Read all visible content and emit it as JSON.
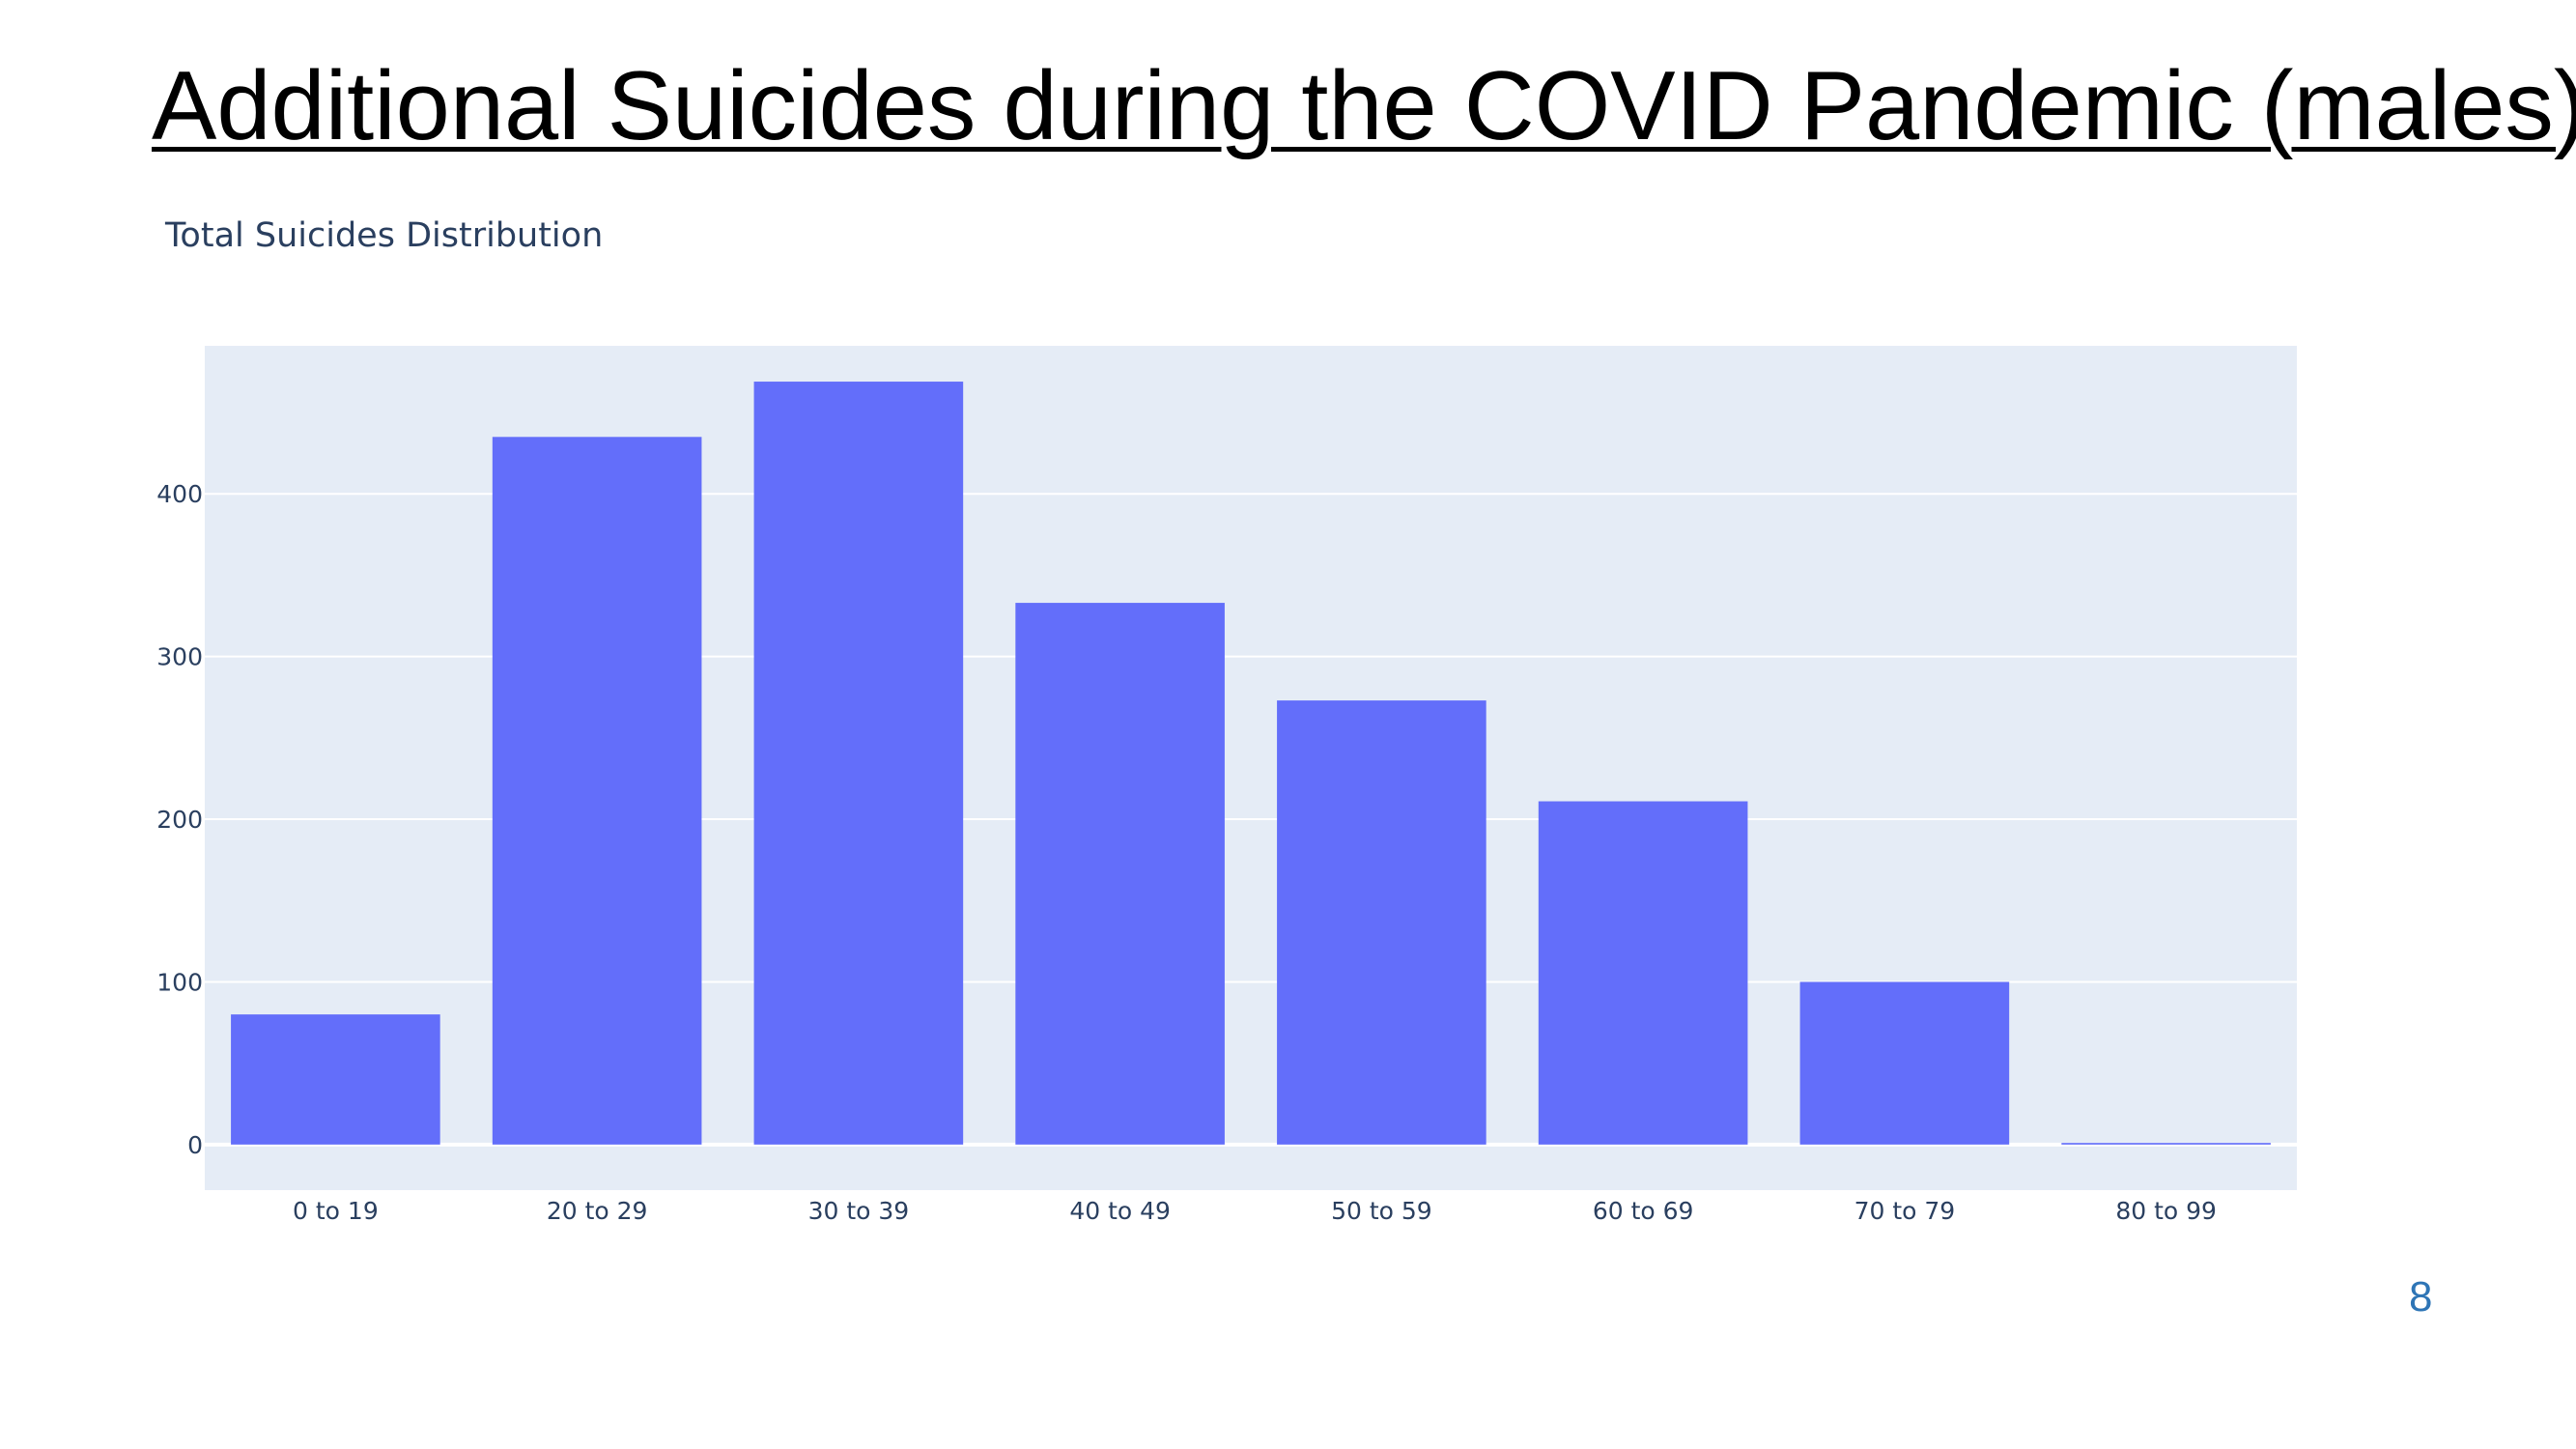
{
  "slide": {
    "title": "Additional Suicides during the COVID Pandemic (males)",
    "page_number": "8"
  },
  "chart_data": {
    "type": "bar",
    "title": "Total Suicides Distribution",
    "xlabel": "",
    "ylabel": "",
    "categories": [
      "0 to 19",
      "20 to 29",
      "30 to 39",
      "40 to 49",
      "50 to 59",
      "60 to 69",
      "70 to 79",
      "80 to 99"
    ],
    "values": [
      80,
      435,
      469,
      333,
      273,
      211,
      100,
      1
    ],
    "ylim": [
      -28,
      491
    ],
    "yticks": [
      0,
      100,
      200,
      300,
      400
    ],
    "grid": true,
    "legend": "none",
    "colors": {
      "bar": "#636efa",
      "plot_background": "#e5ecf6",
      "grid": "#ffffff",
      "text": "#2a3f5f"
    }
  }
}
